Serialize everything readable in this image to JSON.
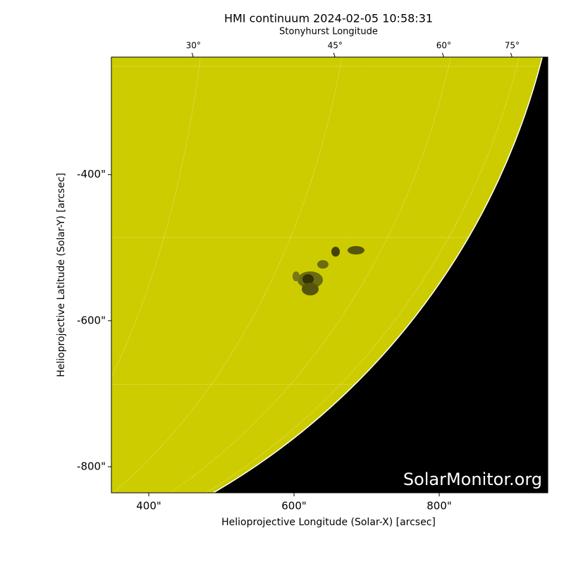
{
  "chart_data": {
    "type": "image",
    "title": "HMI continuum 2024-02-05 10:58:31",
    "xlabel": "Helioprojective Longitude (Solar-X) [arcsec]",
    "ylabel": "Helioprojective Latitude (Solar-Y) [arcsec]",
    "x2label": "Stonyhurst Longitude",
    "xlim": [
      348.5,
      949.5
    ],
    "ylim": [
      -835.7,
      -239
    ],
    "xticks": [
      {
        "value": 400,
        "label": "400\""
      },
      {
        "value": 600,
        "label": "600\""
      },
      {
        "value": 800,
        "label": "800\""
      }
    ],
    "yticks": [
      {
        "value": -400,
        "label": "-400\""
      },
      {
        "value": -600,
        "label": "-600\""
      },
      {
        "value": -800,
        "label": "-800\""
      }
    ],
    "x2ticks": [
      {
        "value": 30,
        "label": "30°"
      },
      {
        "value": 45,
        "label": "45°"
      },
      {
        "value": 60,
        "label": "60°"
      },
      {
        "value": 75,
        "label": "75°"
      }
    ],
    "disk_color": "#cccc00",
    "watermark": "SolarMonitor.org"
  }
}
